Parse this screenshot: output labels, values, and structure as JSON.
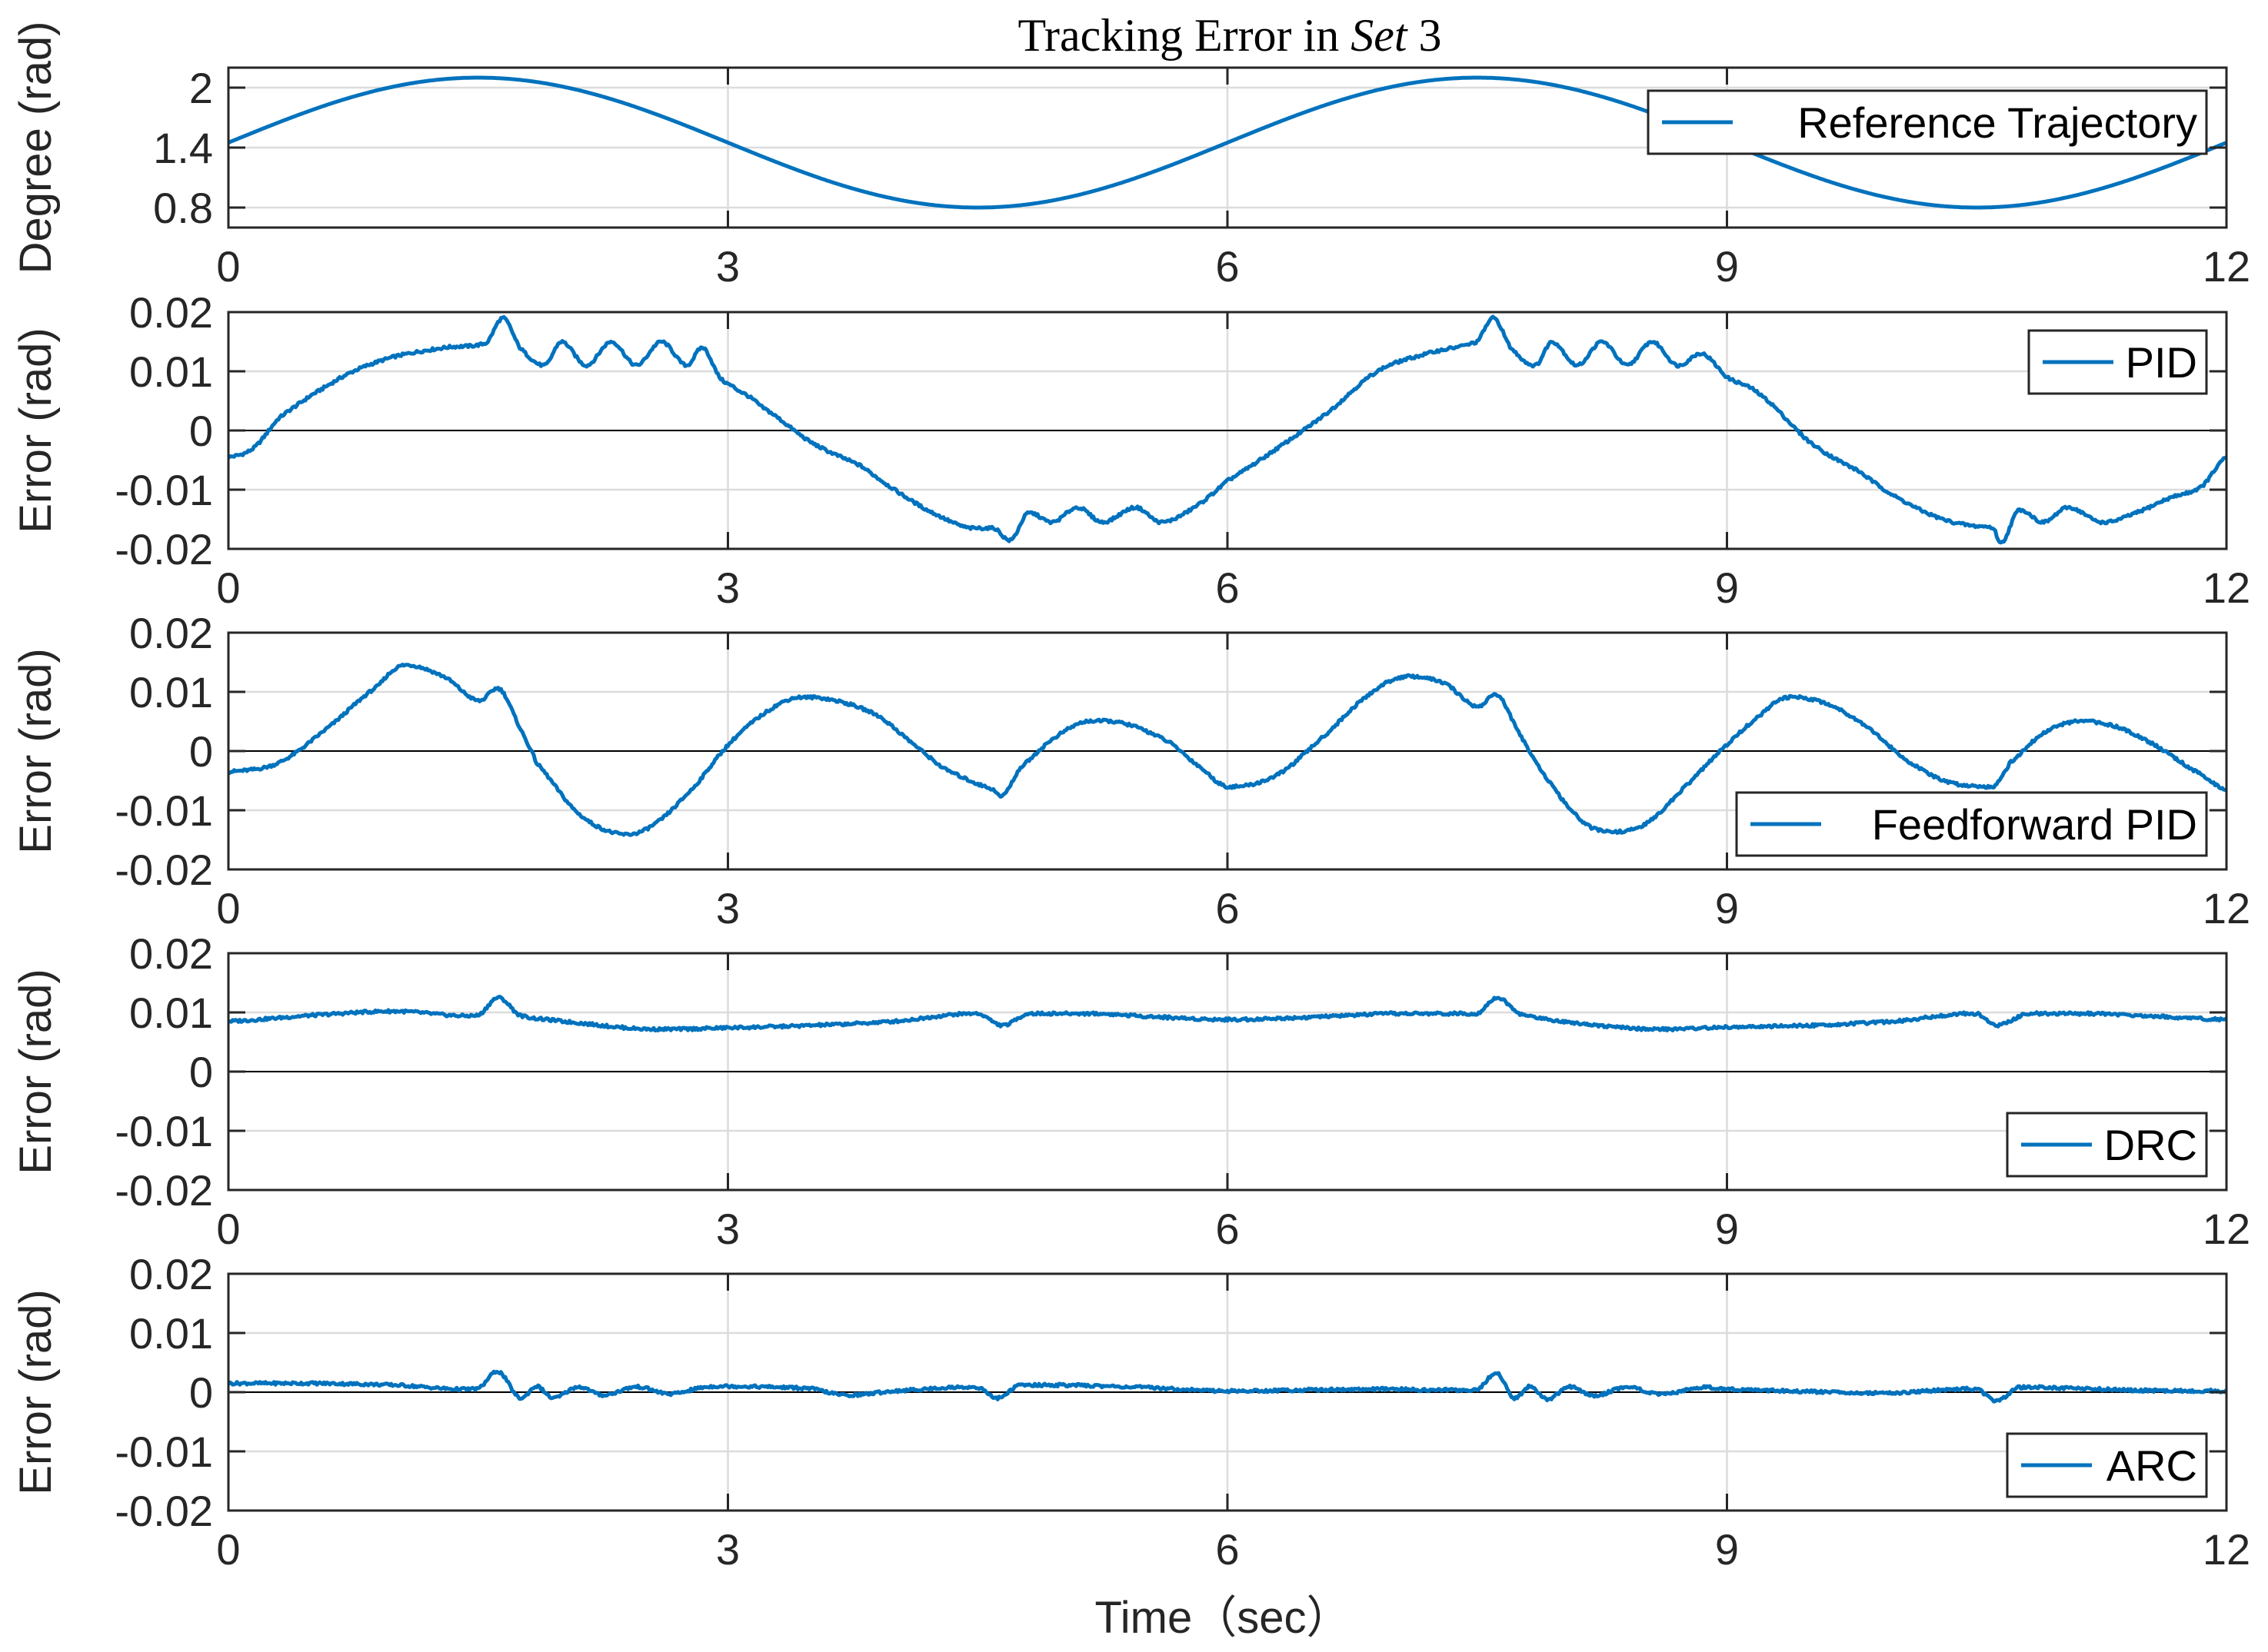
{
  "chart_data": {
    "type": "line",
    "title": "Tracking Error in ",
    "title_italic": "Set",
    "title_suffix": " 3",
    "xlabel": "Time（sec）",
    "xlim": [
      0,
      12
    ],
    "xticks": [
      "0",
      "3",
      "6",
      "9",
      "12"
    ],
    "line_color": "#0072BD",
    "panels": [
      {
        "name": "reference",
        "legend": "Reference Trajectory",
        "ylabel": "Degree (rad)",
        "ylim": [
          0.6,
          2.2
        ],
        "yticks": [
          0.8,
          1.4,
          2.0
        ],
        "ytick_labels": [
          "0.8",
          "1.4",
          "2"
        ],
        "zero_line": false,
        "series_model": {
          "type": "sine",
          "offset": 1.45,
          "amplitude": 0.65,
          "period_s": 6.0,
          "phase_offset_s": 0.0
        },
        "keypoints": [
          [
            0,
            1.45
          ],
          [
            1.5,
            2.1
          ],
          [
            3.0,
            1.45
          ],
          [
            4.5,
            0.8
          ],
          [
            6.0,
            1.45
          ],
          [
            7.5,
            2.1
          ],
          [
            9.0,
            1.45
          ],
          [
            10.5,
            0.8
          ],
          [
            12.0,
            1.45
          ]
        ]
      },
      {
        "name": "pid",
        "legend": "PID",
        "ylabel": "Error (rad)",
        "ylim": [
          -0.02,
          0.02
        ],
        "yticks": [
          -0.02,
          -0.01,
          0,
          0.01,
          0.02
        ],
        "ytick_labels": [
          "-0.02",
          "-0.01",
          "0",
          "0.01",
          "0.02"
        ],
        "zero_line": true,
        "keypoints": [
          [
            0,
            -0.0045
          ],
          [
            0.15,
            -0.003
          ],
          [
            0.3,
            0.002
          ],
          [
            0.5,
            0.006
          ],
          [
            0.75,
            0.01
          ],
          [
            1.0,
            0.0125
          ],
          [
            1.3,
            0.014
          ],
          [
            1.55,
            0.0148
          ],
          [
            1.65,
            0.019
          ],
          [
            1.75,
            0.014
          ],
          [
            1.9,
            0.011
          ],
          [
            2.0,
            0.015
          ],
          [
            2.15,
            0.011
          ],
          [
            2.3,
            0.015
          ],
          [
            2.45,
            0.011
          ],
          [
            2.6,
            0.015
          ],
          [
            2.75,
            0.011
          ],
          [
            2.85,
            0.014
          ],
          [
            2.95,
            0.009
          ],
          [
            3.05,
            0.007
          ],
          [
            3.2,
            0.004
          ],
          [
            3.5,
            -0.002
          ],
          [
            3.8,
            -0.006
          ],
          [
            4.0,
            -0.01
          ],
          [
            4.2,
            -0.0135
          ],
          [
            4.45,
            -0.0165
          ],
          [
            4.6,
            -0.0165
          ],
          [
            4.7,
            -0.0185
          ],
          [
            4.8,
            -0.014
          ],
          [
            4.95,
            -0.0155
          ],
          [
            5.1,
            -0.013
          ],
          [
            5.25,
            -0.0155
          ],
          [
            5.45,
            -0.013
          ],
          [
            5.6,
            -0.0155
          ],
          [
            5.8,
            -0.013
          ],
          [
            6.0,
            -0.0085
          ],
          [
            6.3,
            -0.003
          ],
          [
            6.6,
            0.003
          ],
          [
            6.9,
            0.01
          ],
          [
            7.2,
            0.013
          ],
          [
            7.5,
            0.015
          ],
          [
            7.6,
            0.019
          ],
          [
            7.7,
            0.014
          ],
          [
            7.85,
            0.011
          ],
          [
            7.95,
            0.015
          ],
          [
            8.1,
            0.011
          ],
          [
            8.25,
            0.015
          ],
          [
            8.4,
            0.011
          ],
          [
            8.55,
            0.015
          ],
          [
            8.7,
            0.011
          ],
          [
            8.85,
            0.013
          ],
          [
            9.0,
            0.009
          ],
          [
            9.2,
            0.006
          ],
          [
            9.5,
            -0.002
          ],
          [
            9.8,
            -0.007
          ],
          [
            10.0,
            -0.011
          ],
          [
            10.25,
            -0.0145
          ],
          [
            10.45,
            -0.016
          ],
          [
            10.6,
            -0.0165
          ],
          [
            10.65,
            -0.019
          ],
          [
            10.75,
            -0.0135
          ],
          [
            10.9,
            -0.0155
          ],
          [
            11.05,
            -0.013
          ],
          [
            11.25,
            -0.0155
          ],
          [
            11.45,
            -0.014
          ],
          [
            11.65,
            -0.0115
          ],
          [
            11.85,
            -0.0095
          ],
          [
            12.0,
            -0.0045
          ]
        ]
      },
      {
        "name": "feedforward-pid",
        "legend": "Feedforward PID",
        "ylabel": "Error (rad)",
        "ylim": [
          -0.02,
          0.02
        ],
        "yticks": [
          -0.02,
          -0.01,
          0,
          0.01,
          0.02
        ],
        "ytick_labels": [
          "-0.02",
          "-0.01",
          "0",
          "0.01",
          "0.02"
        ],
        "zero_line": true,
        "keypoints": [
          [
            0,
            -0.0035
          ],
          [
            0.3,
            -0.002
          ],
          [
            0.6,
            0.004
          ],
          [
            0.9,
            0.011
          ],
          [
            1.05,
            0.0145
          ],
          [
            1.3,
            0.0125
          ],
          [
            1.5,
            0.0085
          ],
          [
            1.63,
            0.0105
          ],
          [
            1.75,
            0.004
          ],
          [
            1.85,
            -0.002
          ],
          [
            2.1,
            -0.0105
          ],
          [
            2.35,
            -0.014
          ],
          [
            2.55,
            -0.0125
          ],
          [
            2.8,
            -0.006
          ],
          [
            3.0,
            0.001
          ],
          [
            3.2,
            0.006
          ],
          [
            3.4,
            0.009
          ],
          [
            3.65,
            0.0085
          ],
          [
            3.9,
            0.006
          ],
          [
            4.1,
            0.0015
          ],
          [
            4.3,
            -0.003
          ],
          [
            4.6,
            -0.0065
          ],
          [
            4.65,
            -0.0075
          ],
          [
            4.75,
            -0.003
          ],
          [
            4.95,
            0.002
          ],
          [
            5.15,
            0.005
          ],
          [
            5.4,
            0.0045
          ],
          [
            5.65,
            0.0015
          ],
          [
            5.85,
            -0.003
          ],
          [
            6.0,
            -0.006
          ],
          [
            6.3,
            -0.004
          ],
          [
            6.6,
            0.003
          ],
          [
            6.85,
            0.0095
          ],
          [
            7.05,
            0.0125
          ],
          [
            7.3,
            0.0115
          ],
          [
            7.5,
            0.0075
          ],
          [
            7.62,
            0.0095
          ],
          [
            7.75,
            0.003
          ],
          [
            7.9,
            -0.004
          ],
          [
            8.1,
            -0.011
          ],
          [
            8.25,
            -0.0135
          ],
          [
            8.5,
            -0.0125
          ],
          [
            8.75,
            -0.006
          ],
          [
            9.0,
            0.001
          ],
          [
            9.2,
            0.006
          ],
          [
            9.35,
            0.009
          ],
          [
            9.6,
            0.008
          ],
          [
            9.85,
            0.004
          ],
          [
            10.05,
            -0.001
          ],
          [
            10.3,
            -0.005
          ],
          [
            10.55,
            -0.006
          ],
          [
            10.6,
            -0.006
          ],
          [
            10.7,
            -0.002
          ],
          [
            10.9,
            0.003
          ],
          [
            11.1,
            0.005
          ],
          [
            11.35,
            0.004
          ],
          [
            11.6,
            0.0005
          ],
          [
            11.85,
            -0.004
          ],
          [
            12.0,
            -0.0065
          ]
        ]
      },
      {
        "name": "drc",
        "legend": "DRC",
        "ylabel": "Error (rad)",
        "ylim": [
          -0.02,
          0.02
        ],
        "yticks": [
          -0.02,
          -0.01,
          0,
          0.01,
          0.02
        ],
        "ytick_labels": [
          "-0.02",
          "-0.01",
          "0",
          "0.01",
          "0.02"
        ],
        "zero_line": true,
        "keypoints": [
          [
            0,
            0.0085
          ],
          [
            0.5,
            0.0095
          ],
          [
            1.0,
            0.0102
          ],
          [
            1.5,
            0.0095
          ],
          [
            1.62,
            0.0125
          ],
          [
            1.75,
            0.0095
          ],
          [
            2.0,
            0.0085
          ],
          [
            2.5,
            0.0072
          ],
          [
            3.0,
            0.0074
          ],
          [
            3.5,
            0.0078
          ],
          [
            4.0,
            0.0085
          ],
          [
            4.5,
            0.0098
          ],
          [
            4.65,
            0.0078
          ],
          [
            4.8,
            0.0098
          ],
          [
            5.2,
            0.0098
          ],
          [
            5.6,
            0.0092
          ],
          [
            6.0,
            0.0088
          ],
          [
            6.5,
            0.0092
          ],
          [
            7.0,
            0.0098
          ],
          [
            7.5,
            0.0098
          ],
          [
            7.62,
            0.0125
          ],
          [
            7.75,
            0.0098
          ],
          [
            8.0,
            0.0085
          ],
          [
            8.5,
            0.0072
          ],
          [
            9.0,
            0.0075
          ],
          [
            9.5,
            0.0078
          ],
          [
            10.0,
            0.0085
          ],
          [
            10.5,
            0.0098
          ],
          [
            10.62,
            0.0078
          ],
          [
            10.8,
            0.0098
          ],
          [
            11.2,
            0.0098
          ],
          [
            11.6,
            0.0093
          ],
          [
            12.0,
            0.0088
          ]
        ]
      },
      {
        "name": "arc",
        "legend": "ARC",
        "ylabel": "Error (rad)",
        "ylim": [
          -0.02,
          0.02
        ],
        "yticks": [
          -0.02,
          -0.01,
          0,
          0.01,
          0.02
        ],
        "ytick_labels": [
          "-0.02",
          "-0.01",
          "0",
          "0.01",
          "0.02"
        ],
        "zero_line": true,
        "keypoints": [
          [
            0,
            0.0015
          ],
          [
            0.5,
            0.0015
          ],
          [
            1.0,
            0.0012
          ],
          [
            1.5,
            0.0006
          ],
          [
            1.62,
            0.0035
          ],
          [
            1.75,
            -0.001
          ],
          [
            1.85,
            0.001
          ],
          [
            1.95,
            -0.001
          ],
          [
            2.1,
            0.0009
          ],
          [
            2.25,
            -0.0005
          ],
          [
            2.45,
            0.0009
          ],
          [
            2.65,
            -0.0003
          ],
          [
            2.85,
            0.0008
          ],
          [
            3.0,
            0.001
          ],
          [
            3.5,
            0.0006
          ],
          [
            3.7,
            -0.0005
          ],
          [
            4.0,
            0.0002
          ],
          [
            4.5,
            0.0008
          ],
          [
            4.62,
            -0.001
          ],
          [
            4.75,
            0.0012
          ],
          [
            5.0,
            0.0012
          ],
          [
            5.5,
            0.0008
          ],
          [
            6.0,
            0.0002
          ],
          [
            6.5,
            0.0004
          ],
          [
            7.0,
            0.0005
          ],
          [
            7.5,
            0.0004
          ],
          [
            7.62,
            0.0032
          ],
          [
            7.72,
            -0.001
          ],
          [
            7.82,
            0.001
          ],
          [
            7.92,
            -0.0012
          ],
          [
            8.05,
            0.0009
          ],
          [
            8.2,
            -0.0006
          ],
          [
            8.4,
            0.0009
          ],
          [
            8.6,
            -0.0004
          ],
          [
            8.85,
            0.0008
          ],
          [
            9.0,
            0.0005
          ],
          [
            9.5,
            0.0001
          ],
          [
            10.0,
            -0.0001
          ],
          [
            10.5,
            0.0005
          ],
          [
            10.62,
            -0.0015
          ],
          [
            10.75,
            0.0008
          ],
          [
            11.0,
            0.0007
          ],
          [
            11.5,
            0.0003
          ],
          [
            12.0,
            0.0002
          ]
        ]
      }
    ]
  }
}
